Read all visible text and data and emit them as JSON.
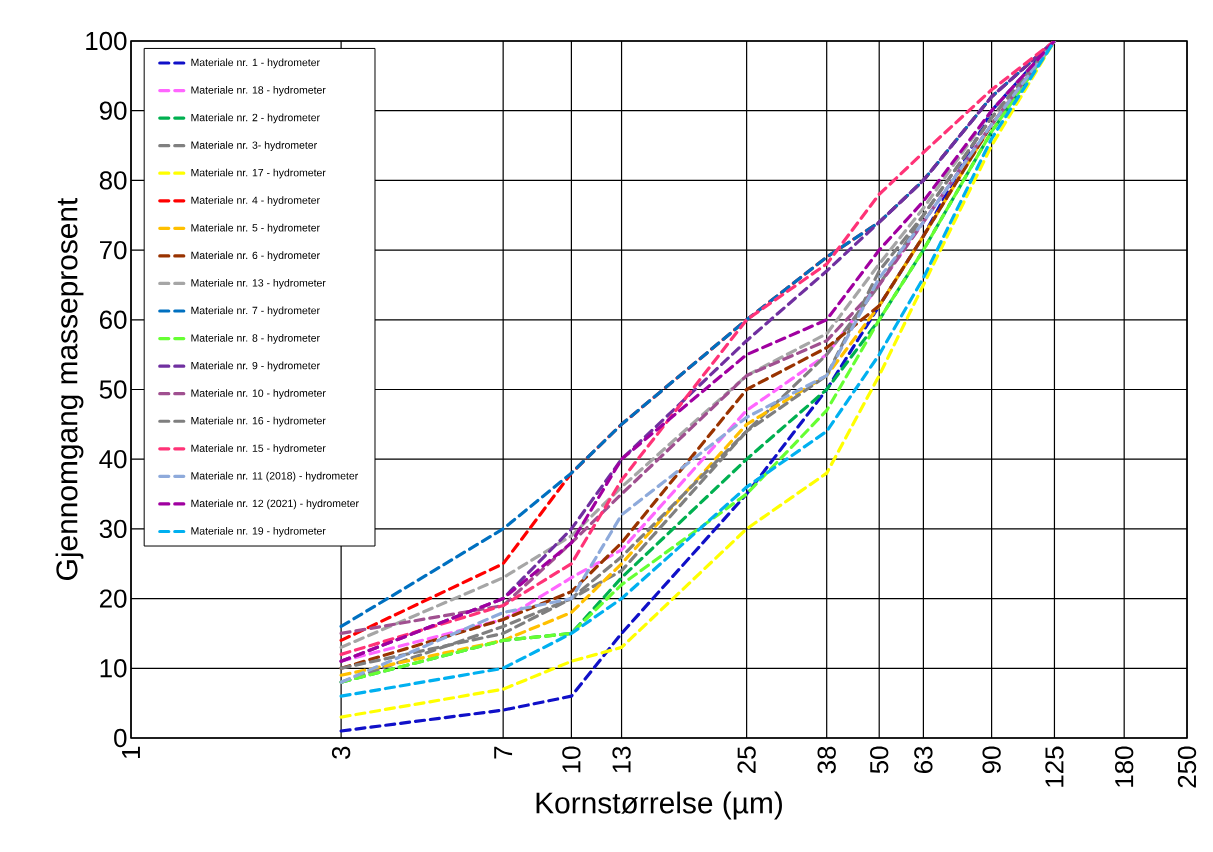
{
  "chart_data": {
    "type": "line",
    "xlabel": "Kornstørrelse (µm)",
    "ylabel": "Gjennomgang masseprosent",
    "log": "x",
    "grid": true,
    "legend": "top left",
    "marker": "none",
    "line_style": "dashed",
    "xlim": [
      1,
      250
    ],
    "ylim": [
      0,
      100
    ],
    "xticks": [
      1,
      3,
      7,
      10,
      13,
      25,
      38,
      50,
      63,
      90,
      125,
      180,
      250
    ],
    "yticks": [
      0,
      10,
      20,
      30,
      40,
      50,
      60,
      70,
      80,
      90,
      100
    ],
    "x": [
      3,
      7,
      10,
      13,
      25,
      38,
      50,
      63,
      90,
      125
    ],
    "series": [
      {
        "name": "Materiale nr. 1 - hydrometer",
        "color": "#1010c8",
        "values": [
          1,
          4,
          6,
          15,
          35,
          50,
          62,
          72,
          90,
          100
        ]
      },
      {
        "name": "Materiale nr. 18 - hydrometer",
        "color": "#ff66ff",
        "values": [
          11,
          17,
          23,
          27,
          47,
          55,
          65,
          74,
          88,
          100
        ]
      },
      {
        "name": "Materiale nr. 2  - hydrometer",
        "color": "#00b050",
        "values": [
          8,
          14,
          15,
          23,
          40,
          50,
          60,
          70,
          87,
          100
        ]
      },
      {
        "name": "Materiale nr. 3- hydrometer",
        "color": "#808080",
        "values": [
          8,
          16,
          20,
          24,
          44,
          55,
          65,
          75,
          89,
          100
        ]
      },
      {
        "name": "Materiale nr. 17 - hydrometer",
        "color": "#ffff00",
        "values": [
          3,
          7,
          11,
          13,
          30,
          38,
          52,
          65,
          85,
          100
        ]
      },
      {
        "name": "Materiale nr. 4 - hydrometer",
        "color": "#ff0000",
        "values": [
          14,
          25,
          38,
          45,
          60,
          69,
          74,
          80,
          92,
          100
        ]
      },
      {
        "name": "Materiale nr. 5 - hydrometer",
        "color": "#ffc000",
        "values": [
          9,
          14,
          18,
          25,
          45,
          52,
          62,
          72,
          88,
          100
        ]
      },
      {
        "name": "Materiale nr. 6 - hydrometer",
        "color": "#993300",
        "values": [
          10,
          17,
          21,
          28,
          50,
          56,
          62,
          72,
          88,
          100
        ]
      },
      {
        "name": "Materiale nr. 13 - hydrometer",
        "color": "#a6a6a6",
        "values": [
          13,
          23,
          29,
          36,
          52,
          58,
          68,
          76,
          90,
          100
        ]
      },
      {
        "name": "Materiale nr. 7 - hydrometer",
        "color": "#0070c0",
        "values": [
          16,
          30,
          38,
          45,
          60,
          69,
          74,
          80,
          92,
          100
        ]
      },
      {
        "name": "Materiale nr. 8 - hydrometer",
        "color": "#66ff33",
        "values": [
          8,
          14,
          15,
          22,
          35,
          47,
          60,
          70,
          87,
          100
        ]
      },
      {
        "name": "Materiale nr. 9 - hydrometer",
        "color": "#7030a0",
        "values": [
          11,
          20,
          30,
          40,
          57,
          67,
          74,
          80,
          92,
          100
        ]
      },
      {
        "name": "Materiale nr. 10 - hydrometer",
        "color": "#a05090",
        "values": [
          15,
          19,
          28,
          35,
          52,
          57,
          65,
          74,
          88,
          100
        ]
      },
      {
        "name": "Materiale nr. 16 - hydrometer",
        "color": "#7f7f7f",
        "values": [
          10,
          15,
          20,
          26,
          44,
          52,
          67,
          75,
          89,
          100
        ]
      },
      {
        "name": "Materiale nr. 15 - hydrometer",
        "color": "#ff3377",
        "values": [
          12,
          19,
          25,
          37,
          60,
          68,
          78,
          84,
          93,
          100
        ]
      },
      {
        "name": "Materiale nr. 11 (2018) - hydrometer",
        "color": "#8eaadb",
        "values": [
          8,
          18,
          20,
          32,
          46,
          52,
          66,
          74,
          88,
          100
        ]
      },
      {
        "name": "Materiale nr. 12 (2021) - hydrometer",
        "color": "#a000a0",
        "values": [
          11,
          20,
          28,
          40,
          55,
          60,
          70,
          77,
          90,
          100
        ]
      },
      {
        "name": "Materiale nr. 19 - hydrometer",
        "color": "#00b0f0",
        "values": [
          6,
          10,
          15,
          20,
          36,
          44,
          55,
          66,
          86,
          100
        ]
      }
    ]
  }
}
